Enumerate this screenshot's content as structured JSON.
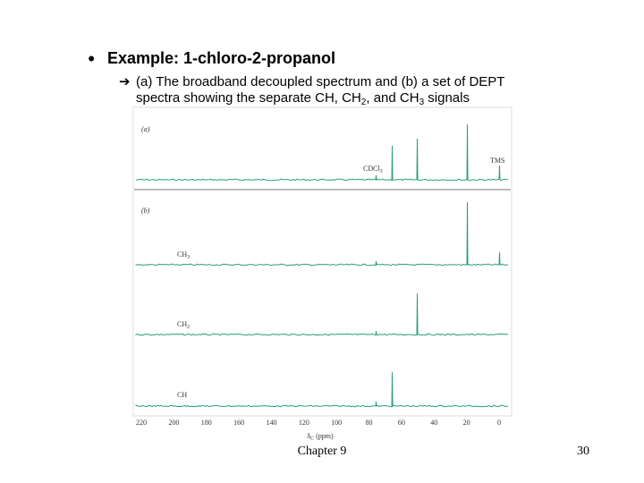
{
  "slide": {
    "title": "Example: 1-chloro-2-propanol",
    "subtitle_line1": "(a) The broadband decoupled spectrum and (b) a set of DEPT",
    "subtitle_line2": [
      "spectra showing the separate CH, CH",
      "2",
      ", and CH",
      "3",
      " signals"
    ],
    "figure": {
      "panel_a_label": "(a)",
      "panel_b_label": "(b)",
      "peak_labels": {
        "cdcl3": [
          "CDCl",
          "3"
        ],
        "tms": "TMS"
      },
      "trace_labels": [
        [
          "CH",
          "3"
        ],
        [
          "CH",
          "2"
        ],
        [
          "CH",
          ""
        ]
      ],
      "axis_ticks": [
        "220",
        "200",
        "180",
        "160",
        "140",
        "120",
        "100",
        "80",
        "60",
        "40",
        "20",
        "0"
      ],
      "axis_label": [
        "δ",
        "C",
        " (ppm)"
      ]
    },
    "footer": {
      "chapter": "Chapter 9",
      "page": "30"
    }
  }
}
